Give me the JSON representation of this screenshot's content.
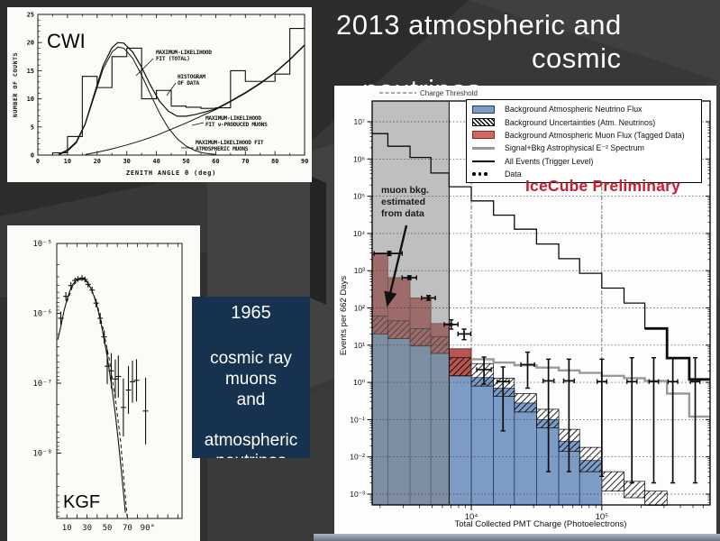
{
  "slide": {
    "title": {
      "line1": "2013 atmospheric and",
      "line2": "cosmic",
      "line3": "neutrinos"
    },
    "textbox": {
      "year": "1965",
      "lines": [
        "cosmic ray",
        "muons",
        "and"
      ],
      "line2": "atmospheric",
      "line3": "neutrinos",
      "bg": "#17324e"
    },
    "colors": {
      "background": "#383838",
      "accent_red": "#c32133",
      "plot_blue": "#7d9cc5",
      "plot_red": "#b85550"
    }
  },
  "chart_data": [
    {
      "id": "cwi",
      "type": "bar",
      "corner_label": "CWI",
      "xlabel": "ZENITH ANGLE θ (deg)",
      "ylabel": "NUMBER OF COUNTS",
      "xlim": [
        0,
        90
      ],
      "ylim": [
        0,
        25
      ],
      "x_ticks": [
        0,
        10,
        20,
        30,
        40,
        50,
        60,
        70,
        80,
        90
      ],
      "y_ticks": [
        0,
        5,
        10,
        15,
        20,
        25
      ],
      "bin_width": 5,
      "categories": [
        "0-5",
        "5-10",
        "10-15",
        "15-20",
        "20-25",
        "25-30",
        "30-35",
        "35-40",
        "40-45",
        "45-50",
        "50-55",
        "55-60",
        "60-65",
        "65-70",
        "70-75",
        "75-80",
        "80-85",
        "85-90"
      ],
      "values": [
        0,
        0.4,
        3.3,
        14,
        12,
        17.5,
        19,
        10,
        11.5,
        8.7,
        8.5,
        8.3,
        8.4,
        15,
        13.1,
        13.1,
        14.4,
        22.5
      ],
      "curves": {
        "total": [
          [
            7,
            0.15
          ],
          [
            10,
            0.9
          ],
          [
            13,
            2.4
          ],
          [
            16,
            5.6
          ],
          [
            19,
            10.8
          ],
          [
            22,
            15.9
          ],
          [
            25,
            19.1
          ],
          [
            27,
            20
          ],
          [
            29,
            19.9
          ],
          [
            32,
            18.3
          ],
          [
            35,
            15.6
          ],
          [
            38,
            12.4
          ],
          [
            41,
            9.6
          ],
          [
            44,
            7.8
          ],
          [
            47,
            6.9
          ],
          [
            50,
            6.9
          ],
          [
            53,
            7.2
          ],
          [
            56,
            7.6
          ],
          [
            60,
            8.2
          ],
          [
            65,
            9.6
          ],
          [
            70,
            11.1
          ],
          [
            75,
            12.8
          ],
          [
            80,
            14.7
          ],
          [
            85,
            17
          ],
          [
            90,
            19.6
          ]
        ],
        "atm_muons": [
          [
            7,
            0.05
          ],
          [
            10,
            0.7
          ],
          [
            13,
            2.2
          ],
          [
            16,
            5.5
          ],
          [
            19,
            10.4
          ],
          [
            22,
            15.3
          ],
          [
            25,
            18.3
          ],
          [
            27,
            19.2
          ],
          [
            29,
            19
          ],
          [
            32,
            17.2
          ],
          [
            35,
            14.2
          ],
          [
            38,
            10.8
          ],
          [
            41,
            7.5
          ],
          [
            44,
            4.8
          ],
          [
            47,
            2.9
          ],
          [
            50,
            1.6
          ],
          [
            53,
            0.8
          ],
          [
            56,
            0.35
          ],
          [
            60,
            0.1
          ]
        ],
        "nu_muons": [
          [
            16,
            0.1
          ],
          [
            20,
            0.5
          ],
          [
            25,
            1.1
          ],
          [
            30,
            1.8
          ],
          [
            35,
            2.6
          ],
          [
            40,
            3.5
          ],
          [
            45,
            4.6
          ],
          [
            50,
            5.7
          ],
          [
            55,
            6.9
          ],
          [
            60,
            8.1
          ],
          [
            65,
            9.5
          ],
          [
            70,
            11
          ],
          [
            75,
            12.7
          ],
          [
            80,
            14.6
          ],
          [
            85,
            16.9
          ],
          [
            90,
            19.5
          ]
        ]
      },
      "annotations": [
        {
          "lines": [
            "MAXIMUM-LIKELIHOOD",
            "FIT (TOTAL)"
          ],
          "x": 165,
          "y": 52,
          "leader": [
            162,
            57,
            143,
            76
          ]
        },
        {
          "lines": [
            "HISTOGRAM",
            "OF DATA"
          ],
          "x": 189,
          "y": 79,
          "leader": [
            187,
            84,
            177,
            98
          ]
        },
        {
          "lines": [
            "MAXIMUM-LIKELIHOOD",
            "FIT ν-PRODUCED MUONS"
          ],
          "x": 220,
          "y": 125,
          "leader": [
            218,
            128,
            205,
            131
          ]
        },
        {
          "lines": [
            "MAXIMUM-LIKELIHOOD FIT",
            "ATMOSPHERIC MUONS"
          ],
          "x": 209,
          "y": 152,
          "leader": [
            207,
            156,
            193,
            156
          ]
        }
      ]
    },
    {
      "id": "kgf",
      "type": "line",
      "corner_label": "KGF",
      "y_tick_labels": [
        "10⁻⁵",
        "10⁻⁶",
        "10⁻⁷",
        "10⁻⁸"
      ],
      "y_tick_logs": [
        -5,
        -6,
        -7,
        -8
      ],
      "x_tick_labels": [
        "10",
        "30",
        "50",
        "70",
        "90°"
      ],
      "x_tick_degs": [
        10,
        30,
        50,
        70,
        90
      ],
      "curves": {
        "solid": [
          [
            1,
            4.2e-07
          ],
          [
            4,
            6.5e-07
          ],
          [
            7,
            1.05e-06
          ],
          [
            10,
            1.55e-06
          ],
          [
            13,
            2.1e-06
          ],
          [
            16,
            2.6e-06
          ],
          [
            19,
            2.95e-06
          ],
          [
            22,
            3.15e-06
          ],
          [
            25,
            3.2e-06
          ],
          [
            28,
            3.05e-06
          ],
          [
            31,
            2.7e-06
          ],
          [
            34,
            2.25e-06
          ],
          [
            37,
            1.75e-06
          ],
          [
            40,
            1.25e-06
          ],
          [
            43,
            8.2e-07
          ],
          [
            46,
            5e-07
          ],
          [
            49,
            2.9e-07
          ],
          [
            52,
            1.55e-07
          ],
          [
            55,
            7.8e-08
          ],
          [
            58,
            3.6e-08
          ],
          [
            61,
            1.5e-08
          ],
          [
            64,
            5.5e-09
          ],
          [
            66,
            2.8e-09
          ],
          [
            68,
            1.4e-09
          ]
        ],
        "dashed": [
          [
            10,
            1.45e-06
          ],
          [
            16,
            2.5e-06
          ],
          [
            22,
            3.05e-06
          ],
          [
            28,
            3e-06
          ],
          [
            34,
            2.3e-06
          ],
          [
            40,
            1.35e-06
          ],
          [
            46,
            6e-07
          ],
          [
            52,
            2.2e-07
          ],
          [
            58,
            6e-08
          ],
          [
            63,
            1.6e-08
          ],
          [
            67,
            3.5e-09
          ],
          [
            70,
            1.1e-09
          ]
        ]
      },
      "points": [
        [
          4,
          8.5e-07,
          1.25
        ],
        [
          9,
          1.75e-06,
          1.15
        ],
        [
          14,
          2.5e-06,
          1.12
        ],
        [
          18,
          2.95e-06,
          1.1
        ],
        [
          21,
          3.1e-06,
          1.1
        ],
        [
          25,
          3.2e-06,
          1.1
        ],
        [
          28,
          3.05e-06,
          1.1
        ],
        [
          31,
          2.6e-06,
          1.12
        ],
        [
          35,
          2.15e-06,
          1.12
        ],
        [
          39,
          1.4e-06,
          1.15
        ],
        [
          43,
          8.5e-07,
          1.2
        ],
        [
          47,
          4.6e-07,
          1.25
        ],
        [
          50,
          1.75e-07,
          1.8
        ],
        [
          54,
          1.5e-07,
          1.8
        ],
        [
          58,
          1.15e-07,
          1.9
        ],
        [
          61,
          1.25e-07,
          2.0
        ],
        [
          66,
          4.5e-08,
          2.6
        ],
        [
          71,
          8e-08,
          2.2
        ],
        [
          75,
          1.05e-07,
          2.0
        ],
        [
          79,
          1.1e-07,
          2.0
        ],
        [
          88,
          4e-08,
          3.0
        ]
      ]
    },
    {
      "id": "icecube",
      "type": "bar",
      "threshold_label": "Charge Threshold",
      "watermark": "IceCube Preliminary",
      "xlabel": "Total Collected PMT Charge (Photoelectrons)",
      "ylabel": "Events per 662 Days",
      "x_tick_labels": [
        "10⁴",
        "10⁵"
      ],
      "x_tick_logs": [
        4,
        5
      ],
      "y_tick_labels": [
        "10⁷",
        "10⁶",
        "10⁵",
        "10⁴",
        "10³",
        "10²",
        "10¹",
        "10⁰",
        "10⁻¹",
        "10⁻²",
        "10⁻³"
      ],
      "y_tick_logs": [
        7,
        6,
        5,
        4,
        3,
        2,
        1,
        0,
        -1,
        -2,
        -3
      ],
      "xlim_log": [
        3.24,
        5.83
      ],
      "ylim_log": [
        -3.29,
        7.56
      ],
      "threshold_log": 3.83,
      "annotation": {
        "lines": [
          "muon bkg.",
          "estimated",
          "from data"
        ],
        "x": 52,
        "y": 119,
        "arrow": [
          80,
          155,
          59,
          243
        ]
      },
      "legend": [
        {
          "swatch": "fill-blue",
          "label": "Background Atmospheric Neutrino Flux"
        },
        {
          "swatch": "hatch",
          "label": "Background Uncertainties (Atm. Neutrinos)"
        },
        {
          "swatch": "fill-red",
          "label": "Background Atmospheric Muon Flux (Tagged Data)"
        },
        {
          "swatch": "line-gray",
          "label": "Signal+Bkg Astrophysical E⁻² Spectrum"
        },
        {
          "swatch": "line-black",
          "label": "All Events (Trigger Level)"
        },
        {
          "swatch": "dots",
          "label": "Data"
        }
      ],
      "bin_edges_log": [
        3.24,
        3.36,
        3.53,
        3.69,
        3.83,
        4.0,
        4.17,
        4.33,
        4.5,
        4.67,
        4.83,
        5.0,
        5.17,
        5.33,
        5.5,
        5.67,
        5.83
      ],
      "series": {
        "all_events": [
          4800000.0,
          2200000.0,
          1100000.0,
          420000.0,
          180000.0,
          75000.0,
          31000.0,
          13000.0,
          5200.0,
          2100.0,
          850,
          340,
          135,
          28,
          4.5,
          1.2
        ],
        "muon_flux": [
          2900,
          650,
          185,
          38,
          8,
          0,
          0,
          0,
          0,
          0,
          0,
          0,
          0,
          0,
          0,
          0
        ],
        "atm_neutrino": [
          35,
          27,
          16,
          10,
          2.4,
          1.35,
          0.7,
          0.28,
          0.1,
          0.026,
          0.008,
          0,
          0,
          0,
          0,
          0
        ],
        "uncert_hi": [
          60,
          45,
          28,
          17,
          4.6,
          3.2,
          1.3,
          0.5,
          0.19,
          0.055,
          0.018,
          0.004,
          0.0022,
          0.0012,
          0,
          0
        ],
        "uncert_lo": [
          20,
          15,
          9.5,
          6,
          1.5,
          0.8,
          0.42,
          0.16,
          0.06,
          0.014,
          0.004,
          0.0012,
          0.0008,
          0.0005,
          0,
          0
        ],
        "signal_bkg": [
          null,
          null,
          null,
          null,
          null,
          4.2,
          3.4,
          2.9,
          2.5,
          2.1,
          1.8,
          1.5,
          1.3,
          1.1,
          0.5,
          0.12
        ]
      },
      "data_points": [
        {
          "x": 2350,
          "y": 2900,
          "ylo": 2550,
          "yhi": 3300,
          "xl": 1800,
          "xr": 2950,
          "sq": true
        },
        {
          "x": 3350,
          "y": 650,
          "ylo": 580,
          "yhi": 730,
          "xl": 2950,
          "xr": 3800,
          "sq": true
        },
        {
          "x": 4700,
          "y": 185,
          "ylo": 160,
          "yhi": 215,
          "xl": 4150,
          "xr": 5300,
          "sq": true
        },
        {
          "x": 7000,
          "y": 36,
          "ylo": 27,
          "yhi": 48,
          "xl": 6200,
          "xr": 7900,
          "sq": true
        },
        {
          "x": 8800,
          "y": 20,
          "ylo": 14,
          "yhi": 27,
          "xl": 7900,
          "xr": 9900
        },
        {
          "x": 12500,
          "y": 2.2,
          "ylo": 0.9,
          "yhi": 4.8,
          "xl": 11000,
          "xr": 14200
        },
        {
          "x": 17500,
          "y": 1.05,
          "ylo": 0.05,
          "yhi": 2.6,
          "xl": 15800,
          "xr": 19500
        },
        {
          "x": 27000,
          "y": 3.0,
          "ylo": 0.7,
          "yhi": 6.5,
          "xl": 24000,
          "xr": 30500
        },
        {
          "x": 39000,
          "y": 1.1,
          "ylo": 0.004,
          "yhi": 4.2,
          "xl": 35500,
          "xr": 43000
        },
        {
          "x": 56000,
          "y": 1.1,
          "ylo": 0.004,
          "yhi": 4.2,
          "xl": 51000,
          "xr": 61500
        },
        {
          "x": 100000,
          "y": 1.05,
          "ylo": 0.003,
          "yhi": 4.2,
          "xl": 92000,
          "xr": 109000
        },
        {
          "x": 170000,
          "y": 1.05,
          "ylo": 0.002,
          "yhi": 4.6,
          "xl": 156000,
          "xr": 186000
        },
        {
          "x": 250000,
          "y": 1.05,
          "ylo": 0.002,
          "yhi": 4.6,
          "xl": 230000,
          "xr": 272000
        },
        {
          "x": 350000,
          "y": 1.05,
          "ylo": 0.002,
          "yhi": 4.6,
          "xl": 322000,
          "xr": 381000
        },
        {
          "x": 520000,
          "y": 1.05,
          "ylo": 0.002,
          "yhi": 4.6,
          "xl": 478000,
          "xr": 565000
        }
      ]
    }
  ]
}
